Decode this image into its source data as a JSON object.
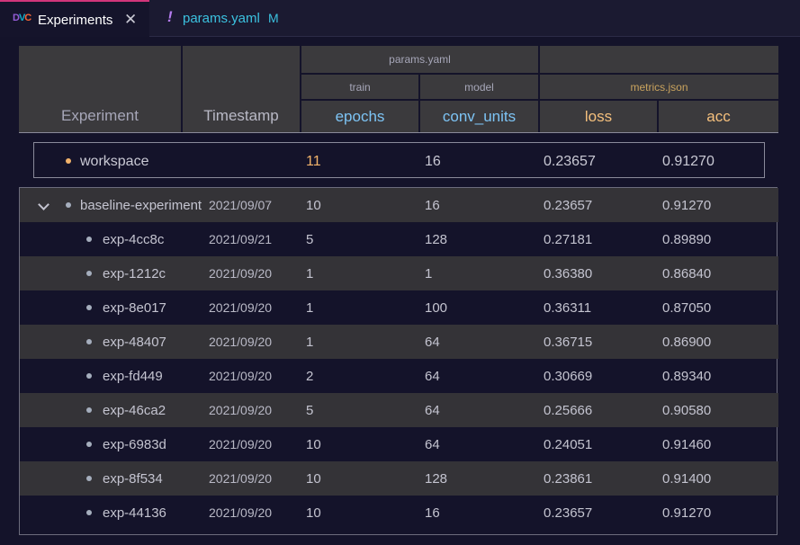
{
  "tabs": [
    {
      "label": "Experiments",
      "icon": "dvc-logo-icon",
      "active": true
    },
    {
      "label": "params.yaml",
      "badge": "M",
      "icon": "yaml-icon",
      "active": false
    }
  ],
  "dvc_logo": {
    "d": "D",
    "v": "V",
    "c": "C"
  },
  "yaml_glyph": "!",
  "close_glyph": "✕",
  "header": {
    "experiment": "Experiment",
    "timestamp": "Timestamp",
    "params_file": "params.yaml",
    "metrics_file": "metrics.json",
    "train": "train",
    "model": "model",
    "epochs": "epochs",
    "conv_units": "conv_units",
    "loss": "loss",
    "acc": "acc"
  },
  "workspace": {
    "name": "workspace",
    "epochs": "11",
    "conv_units": "16",
    "loss": "0.23657",
    "acc": "0.91270"
  },
  "baseline": {
    "name": "baseline-experiment",
    "timestamp": "2021/09/07",
    "epochs": "10",
    "conv_units": "16",
    "loss": "0.23657",
    "acc": "0.91270"
  },
  "experiments": [
    {
      "name": "exp-4cc8c",
      "timestamp": "2021/09/21",
      "epochs": "5",
      "conv_units": "128",
      "loss": "0.27181",
      "acc": "0.89890"
    },
    {
      "name": "exp-1212c",
      "timestamp": "2021/09/20",
      "epochs": "1",
      "conv_units": "1",
      "loss": "0.36380",
      "acc": "0.86840"
    },
    {
      "name": "exp-8e017",
      "timestamp": "2021/09/20",
      "epochs": "1",
      "conv_units": "100",
      "loss": "0.36311",
      "acc": "0.87050"
    },
    {
      "name": "exp-48407",
      "timestamp": "2021/09/20",
      "epochs": "1",
      "conv_units": "64",
      "loss": "0.36715",
      "acc": "0.86900"
    },
    {
      "name": "exp-fd449",
      "timestamp": "2021/09/20",
      "epochs": "2",
      "conv_units": "64",
      "loss": "0.30669",
      "acc": "0.89340"
    },
    {
      "name": "exp-46ca2",
      "timestamp": "2021/09/20",
      "epochs": "5",
      "conv_units": "64",
      "loss": "0.25666",
      "acc": "0.90580"
    },
    {
      "name": "exp-6983d",
      "timestamp": "2021/09/20",
      "epochs": "10",
      "conv_units": "64",
      "loss": "0.24051",
      "acc": "0.91460"
    },
    {
      "name": "exp-8f534",
      "timestamp": "2021/09/20",
      "epochs": "10",
      "conv_units": "128",
      "loss": "0.23861",
      "acc": "0.91400"
    },
    {
      "name": "exp-44136",
      "timestamp": "2021/09/20",
      "epochs": "10",
      "conv_units": "16",
      "loss": "0.23657",
      "acc": "0.91270"
    }
  ],
  "colors": {
    "accent_tab": "#d2357a",
    "params_header": "#7dc4f5",
    "metrics_header": "#f5c07d",
    "workspace_dot": "#f2b36b"
  }
}
